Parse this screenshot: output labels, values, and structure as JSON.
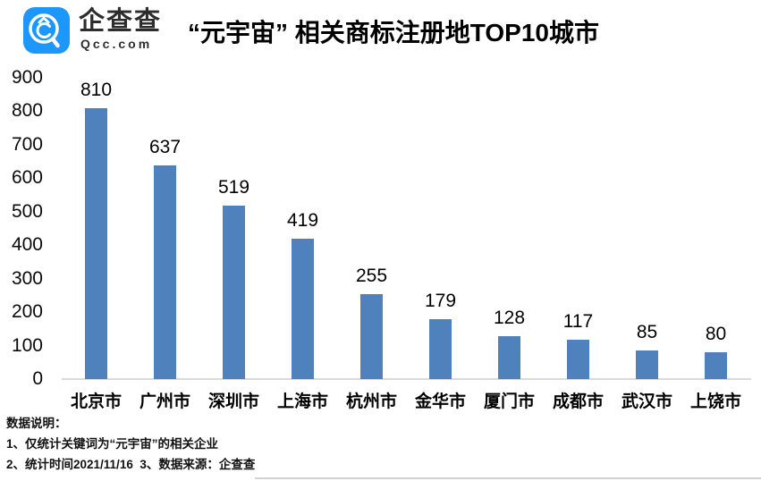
{
  "header": {
    "brand_cn": "企查查",
    "brand_en": "Qcc.com",
    "brand_color": "#1e97fa",
    "title": "“元宇宙” 相关商标注册地TOP10城市"
  },
  "chart_data": {
    "type": "bar",
    "title": "“元宇宙” 相关商标注册地TOP10城市",
    "categories": [
      "北京市",
      "广州市",
      "深圳市",
      "上海市",
      "杭州市",
      "金华市",
      "厦门市",
      "成都市",
      "武汉市",
      "上饶市"
    ],
    "values": [
      810,
      637,
      519,
      419,
      255,
      179,
      128,
      117,
      85,
      80
    ],
    "xlabel": "",
    "ylabel": "",
    "ylim": [
      0,
      900
    ],
    "ytick_step": 100,
    "bar_color": "#4f82bc",
    "axis_line_color": "#d9d9d9",
    "grid": false,
    "legend": false,
    "data_labels": true
  },
  "footer": {
    "notes_title": "数据说明：",
    "note1": "1、仅统计关键词为“元宇宙”的相关企业",
    "note2": "2、统计时间2021/11/16  3、数据来源：企查查"
  }
}
